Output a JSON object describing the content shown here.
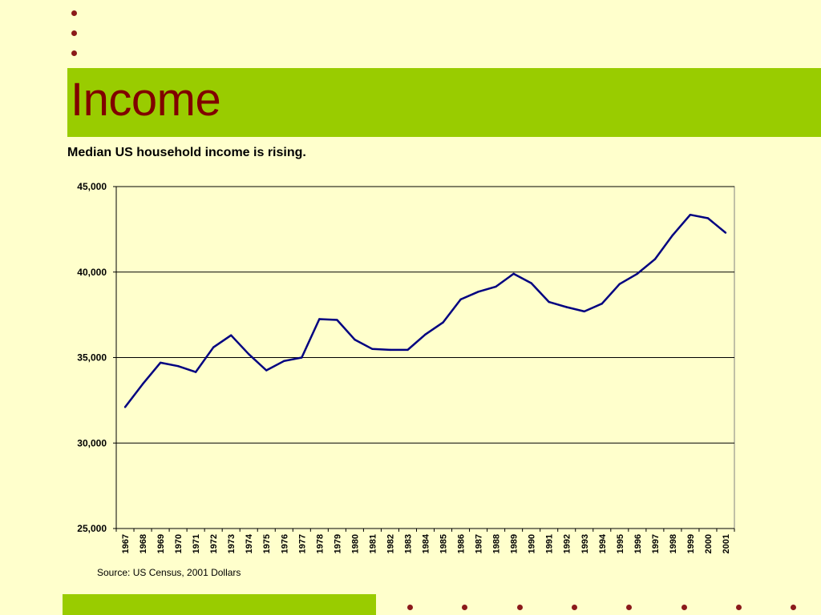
{
  "slide": {
    "title": "Income",
    "subtitle": "Median US household income is rising.",
    "source": "Source: US Census, 2001 Dollars"
  },
  "colors": {
    "background": "#FFFFCC",
    "band": "#99CC00",
    "title": "#800000",
    "line": "#000080",
    "bullets": "#8B1A1A"
  },
  "chart_data": {
    "type": "line",
    "title": "",
    "xlabel": "",
    "ylabel": "",
    "ylim": [
      25000,
      45000
    ],
    "y_ticks": [
      25000,
      30000,
      35000,
      40000,
      45000
    ],
    "y_tick_labels": [
      "25,000",
      "30,000",
      "35,000",
      "40,000",
      "45,000"
    ],
    "grid": true,
    "legend": "none",
    "categories": [
      "1967",
      "1968",
      "1969",
      "1970",
      "1971",
      "1972",
      "1973",
      "1974",
      "1975",
      "1976",
      "1977",
      "1978",
      "1979",
      "1980",
      "1981",
      "1982",
      "1983",
      "1984",
      "1985",
      "1986",
      "1987",
      "1988",
      "1989",
      "1990",
      "1991",
      "1992",
      "1993",
      "1994",
      "1995",
      "1996",
      "1997",
      "1998",
      "1999",
      "2000",
      "2001"
    ],
    "series": [
      {
        "values": [
          32100,
          33450,
          34700,
          34500,
          34150,
          35600,
          36300,
          35200,
          34250,
          34800,
          35000,
          37250,
          37200,
          36050,
          35500,
          35450,
          35450,
          36350,
          37050,
          38400,
          38850,
          39150,
          39900,
          39350,
          38250,
          37950,
          37700,
          38150,
          39300,
          39900,
          40750,
          42150,
          43350,
          43150,
          42300
        ]
      }
    ]
  }
}
